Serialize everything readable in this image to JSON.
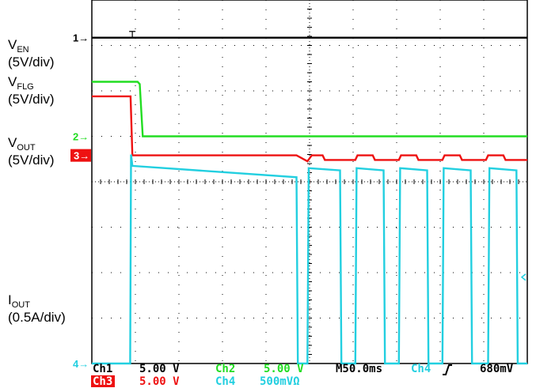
{
  "chart_data": {
    "type": "line",
    "grid": true,
    "grid_divisions": {
      "x": 10,
      "y": 8
    },
    "channel_labels": [
      {
        "id": "en",
        "name": "V",
        "sub": "EN",
        "scale": "(5V/div)"
      },
      {
        "id": "flg",
        "name": "V",
        "sub": "FLG",
        "scale": "(5V/div)"
      },
      {
        "id": "out",
        "name": "V",
        "sub": "OUT",
        "scale": "(5V/div)"
      },
      {
        "id": "iout",
        "name": "I",
        "sub": "OUT",
        "scale": "(0.5A/div)"
      }
    ],
    "markers": {
      "ch1": "1",
      "ch2": "2",
      "ch3": "3",
      "ch4": "4"
    },
    "colors": {
      "ch1": "#000000",
      "ch2": "#22dd22",
      "ch3": "#ee1111",
      "ch4": "#22cfe0",
      "grid": "#000000"
    },
    "time_per_div": "50.0ms",
    "xlim_div": [
      0,
      10
    ],
    "ylim_div": [
      0,
      8
    ],
    "series": [
      {
        "channel": "ch1",
        "x": [
          0,
          10
        ],
        "y": [
          7.17,
          7.17
        ]
      },
      {
        "channel": "ch2",
        "x": [
          0,
          1.05,
          1.1,
          1.17,
          10
        ],
        "y": [
          6.2,
          6.2,
          6.15,
          5.0,
          5.0
        ]
      },
      {
        "channel": "ch3",
        "x": [
          0,
          0.89,
          0.93,
          4.7,
          4.95,
          5.05,
          5.3,
          5.35,
          6.05,
          6.1,
          6.45,
          6.5,
          7.05,
          7.1,
          7.45,
          7.5,
          8.05,
          8.1,
          8.45,
          8.5,
          9.05,
          9.1,
          9.45,
          9.5,
          10
        ],
        "y": [
          5.88,
          5.88,
          4.58,
          4.58,
          4.45,
          4.58,
          4.58,
          4.48,
          4.48,
          4.58,
          4.58,
          4.48,
          4.48,
          4.58,
          4.58,
          4.48,
          4.48,
          4.58,
          4.58,
          4.48,
          4.48,
          4.58,
          4.58,
          4.48,
          4.48
        ]
      },
      {
        "channel": "ch4",
        "x": [
          0,
          0.88,
          0.9,
          0.93,
          4.7,
          4.73,
          4.95,
          4.98,
          5.7,
          5.73,
          6.05,
          6.08,
          6.7,
          6.73,
          7.05,
          7.08,
          7.7,
          7.73,
          8.05,
          8.08,
          8.7,
          8.73,
          9.1,
          9.13,
          9.75,
          9.78,
          10
        ],
        "y": [
          0.0,
          0.0,
          4.6,
          4.35,
          4.1,
          0.0,
          0.0,
          4.3,
          4.25,
          0.0,
          0.0,
          4.3,
          4.25,
          0.0,
          0.0,
          4.3,
          4.25,
          0.0,
          0.0,
          4.3,
          4.25,
          0.0,
          0.0,
          4.3,
          4.25,
          0.0,
          0.0
        ]
      }
    ],
    "status": {
      "row1": [
        {
          "text": "Ch1",
          "channel": "ch1"
        },
        {
          "text": "5.00 V",
          "channel": "ch1"
        },
        {
          "text": "Ch2",
          "channel": "ch2"
        },
        {
          "text": "5.00 V",
          "channel": "ch2"
        },
        {
          "text": "M50.0ms",
          "channel": "ch1"
        },
        {
          "text": "Ch4",
          "channel": "ch4"
        },
        {
          "text": "680mV",
          "channel": "ch1"
        }
      ],
      "row2": [
        {
          "text": "Ch3",
          "channel": "ch3"
        },
        {
          "text": "5.00 V",
          "channel": "ch3"
        },
        {
          "text": "Ch4",
          "channel": "ch4"
        },
        {
          "text": "500mVΩ",
          "channel": "ch4"
        }
      ]
    },
    "trigger_icon": "rising-edge-icon"
  }
}
